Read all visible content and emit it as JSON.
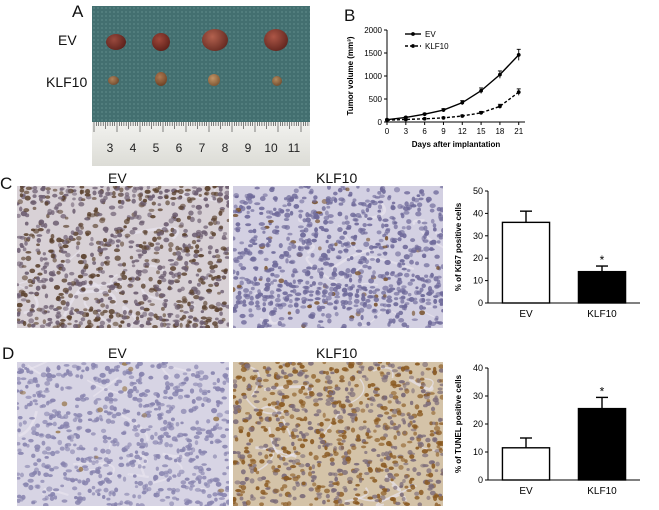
{
  "panels": {
    "a": "A",
    "b": "B",
    "c": "C",
    "d": "D"
  },
  "panel_a": {
    "row_labels": [
      "EV",
      "KLF10"
    ],
    "ruler_numbers": [
      "3",
      "4",
      "5",
      "6",
      "7",
      "8",
      "9",
      "10",
      "11"
    ]
  },
  "panel_c": {
    "left_title": "EV",
    "right_title": "KLF10"
  },
  "panel_d": {
    "left_title": "EV",
    "right_title": "KLF10"
  },
  "colors": {
    "mesh": "#3f6e70",
    "tumor_ev": "#6a2a24",
    "tumor_klf10": "#8a5a3a",
    "ihc_blue": "#b8b6d2",
    "dab_brown": "#c8a878"
  },
  "chart_data": [
    {
      "type": "line",
      "xlabel": "Days after implantation",
      "ylabel": "Tumor volume (mm³)",
      "x": [
        0,
        3,
        6,
        9,
        12,
        15,
        18,
        21
      ],
      "xlim": [
        0,
        22
      ],
      "ylim": [
        0,
        2000
      ],
      "xticks": [
        "0",
        "3",
        "6",
        "9",
        "12",
        "15",
        "18",
        "21"
      ],
      "yticks": [
        "0",
        "500",
        "1000",
        "1500",
        "2000"
      ],
      "series": [
        {
          "name": "EV",
          "style": "solid",
          "values": [
            50,
            100,
            170,
            260,
            420,
            680,
            1030,
            1460
          ],
          "errors": [
            10,
            15,
            20,
            30,
            45,
            60,
            80,
            120
          ]
        },
        {
          "name": "KLF10",
          "style": "dashed",
          "values": [
            40,
            55,
            70,
            90,
            130,
            200,
            340,
            650
          ],
          "errors": [
            8,
            10,
            12,
            15,
            20,
            30,
            45,
            70
          ]
        }
      ],
      "legend": "top-left"
    },
    {
      "type": "bar",
      "ylabel": "% of Ki67 positive cells",
      "categories": [
        "EV",
        "KLF10"
      ],
      "values": [
        36,
        14
      ],
      "errors": [
        5,
        2.5
      ],
      "ylim": [
        0,
        50
      ],
      "yticks": [
        "0",
        "10",
        "20",
        "30",
        "40",
        "50"
      ],
      "significance": [
        "",
        "*"
      ],
      "fills": [
        "#ffffff",
        "#000000"
      ]
    },
    {
      "type": "bar",
      "ylabel": "% of TUNEL positive cells",
      "categories": [
        "EV",
        "KLF10"
      ],
      "values": [
        11.5,
        25.5
      ],
      "errors": [
        3.5,
        4
      ],
      "ylim": [
        0,
        40
      ],
      "yticks": [
        "0",
        "10",
        "20",
        "30",
        "40"
      ],
      "significance": [
        "",
        "*"
      ],
      "fills": [
        "#ffffff",
        "#000000"
      ]
    }
  ]
}
